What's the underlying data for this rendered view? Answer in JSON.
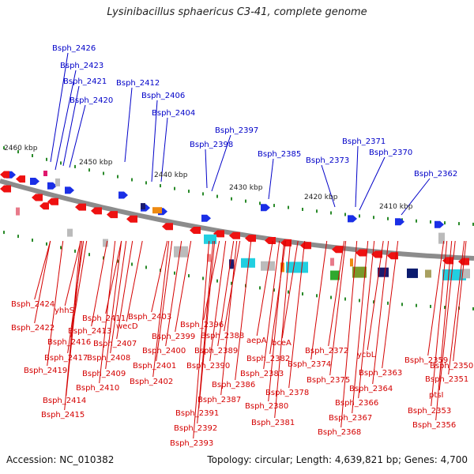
{
  "title": "Lysinibacillus sphaericus C3-41, complete genome",
  "footer": {
    "accession": "Accession: NC_010382",
    "summary": "Topology: circular; Length: 4,639,821 bp; Genes: 4,700"
  },
  "colors": {
    "background": "#ffffff",
    "backbone": "#8c8c8c",
    "upper_labels": "#0000c8",
    "lower_labels": "#d40000",
    "forward_genes": "#1a2fe6",
    "reverse_genes": "#ee1111",
    "tick": "#2a8a2a",
    "scale_text": "#222222"
  },
  "scale_labels": [
    "2460 kbp",
    "2450 kbp",
    "2440 kbp",
    "2430 kbp",
    "2420 kbp",
    "2410 kbp"
  ],
  "upper_genes": [
    "Bsph_2426",
    "Bsph_2423",
    "Bsph_2421",
    "Bsph_2420",
    "Bsph_2412",
    "Bsph_2406",
    "Bsph_2404",
    "Bsph_2397",
    "Bsph_2398",
    "Bsph_2385",
    "Bsph_2373",
    "Bsph_2371",
    "Bsph_2370",
    "Bsph_2362"
  ],
  "lower_genes": [
    "Bsph_2424",
    "yhhS",
    "Bsph_2422",
    "Bsph_2413",
    "Bsph_2411",
    "wecD",
    "Bsph_2416",
    "Bsph_2407",
    "Bsph_2417",
    "Bsph_2408",
    "Bsph_2419",
    "Bsph_2409",
    "Bsph_2410",
    "Bsph_2414",
    "Bsph_2415",
    "Bsph_2403",
    "Bsph_2399",
    "Bsph_2400",
    "Bsph_2401",
    "Bsph_2402",
    "Bsph_2396",
    "Bsph_2388",
    "Bsph_2389",
    "Bsph_2390",
    "Bsph_2386",
    "Bsph_2387",
    "Bsph_2391",
    "Bsph_2392",
    "Bsph_2393",
    "aepA",
    "bceA",
    "Bsph_2382",
    "Bsph_2383",
    "Bsph_2378",
    "Bsph_2380",
    "Bsph_2381",
    "Bsph_2372",
    "Bsph_2374",
    "Bsph_2375",
    "ycbL",
    "Bsph_2363",
    "Bsph_2364",
    "Bsph_2366",
    "Bsph_2367",
    "Bsph_2368",
    "Bsph_2359",
    "Bsph_2350",
    "Bsph_2351",
    "ptsI",
    "Bsph_2353",
    "Bsph_2356"
  ]
}
